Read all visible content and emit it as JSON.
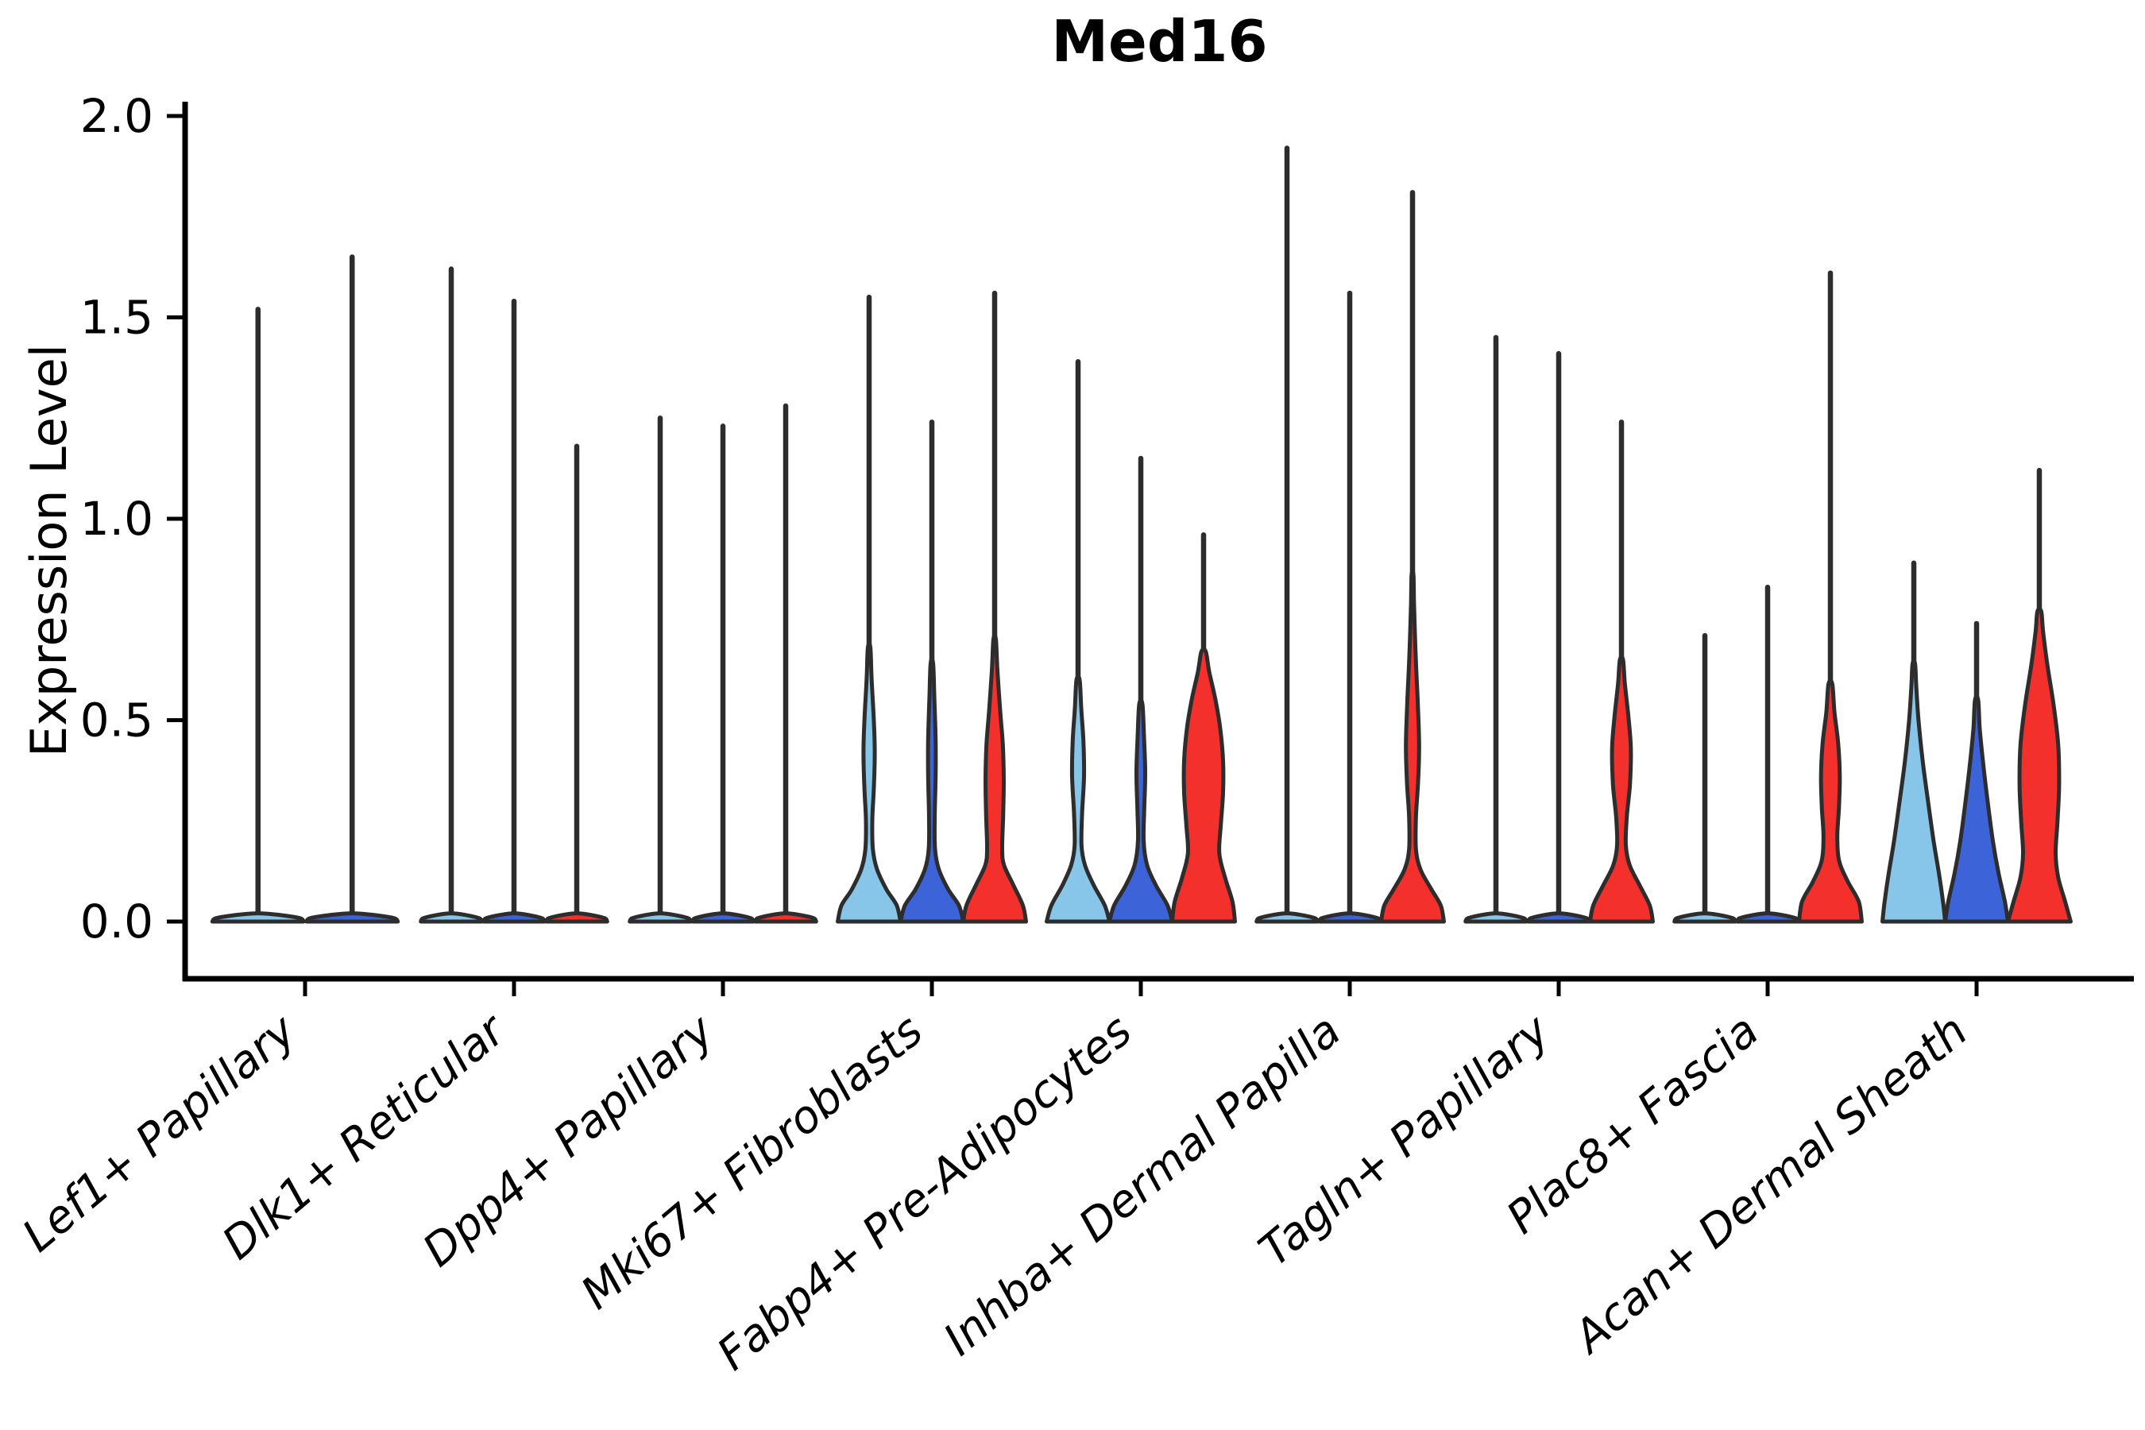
{
  "chart_data": {
    "type": "violin",
    "title": "Med16",
    "ylabel": "Expression Level",
    "xlabel": "",
    "ylim": [
      0.0,
      2.0
    ],
    "yticks": [
      "0.0",
      "0.5",
      "1.0",
      "1.5",
      "2.0"
    ],
    "ytick_values": [
      0.0,
      0.5,
      1.0,
      1.5,
      2.0
    ],
    "grid": "off",
    "legend": "none",
    "categories": [
      "Lef1+ Papillary",
      "Dlk1+ Reticular",
      "Dpp4+ Papillary",
      "Mki67+ Fibroblasts",
      "Fabp4+ Pre-Adipocytes",
      "Inhba+ Dermal Papilla",
      "Tagln+ Papillary",
      "Plac8+ Fascia",
      "Acan+ Dermal Sheath"
    ],
    "palette": {
      "light_blue": "#87c6e8",
      "dark_blue": "#3c64d8",
      "red": "#f3302b",
      "outline": "#2d2d2d",
      "axis": "#000000"
    },
    "flat_profile": [
      [
        0,
        0.97
      ],
      [
        0.008,
        0.9
      ],
      [
        0.015,
        0.55
      ],
      [
        0.02,
        0.12
      ]
    ],
    "groups": [
      {
        "category": "Lef1+ Papillary",
        "violins": [
          {
            "color": "light_blue",
            "max": 1.52,
            "profile": "flat"
          },
          {
            "color": "dark_blue",
            "max": 1.65,
            "profile": "flat"
          }
        ]
      },
      {
        "category": "Dlk1+ Reticular",
        "violins": [
          {
            "color": "light_blue",
            "max": 1.62,
            "profile": "flat"
          },
          {
            "color": "dark_blue",
            "max": 1.54,
            "profile": "flat"
          },
          {
            "color": "red",
            "max": 1.18,
            "profile": "flat"
          }
        ]
      },
      {
        "category": "Dpp4+ Papillary",
        "violins": [
          {
            "color": "light_blue",
            "max": 1.25,
            "profile": "flat"
          },
          {
            "color": "dark_blue",
            "max": 1.23,
            "profile": "flat"
          },
          {
            "color": "red",
            "max": 1.28,
            "profile": "flat"
          }
        ]
      },
      {
        "category": "Mki67+ Fibroblasts",
        "violins": [
          {
            "color": "light_blue",
            "max": 1.55,
            "profile": [
              [
                0,
                1.0
              ],
              [
                0.04,
                0.88
              ],
              [
                0.08,
                0.55
              ],
              [
                0.13,
                0.25
              ],
              [
                0.18,
                0.12
              ],
              [
                0.25,
                0.1
              ],
              [
                0.33,
                0.15
              ],
              [
                0.42,
                0.18
              ],
              [
                0.5,
                0.15
              ],
              [
                0.6,
                0.08
              ],
              [
                0.68,
                0.04
              ]
            ]
          },
          {
            "color": "dark_blue",
            "max": 1.24,
            "profile": [
              [
                0,
                1.0
              ],
              [
                0.04,
                0.86
              ],
              [
                0.08,
                0.52
              ],
              [
                0.13,
                0.22
              ],
              [
                0.18,
                0.1
              ],
              [
                0.26,
                0.09
              ],
              [
                0.36,
                0.12
              ],
              [
                0.45,
                0.12
              ],
              [
                0.55,
                0.08
              ],
              [
                0.64,
                0.04
              ]
            ]
          },
          {
            "color": "red",
            "max": 1.56,
            "profile": [
              [
                0,
                1.0
              ],
              [
                0.04,
                0.9
              ],
              [
                0.09,
                0.6
              ],
              [
                0.14,
                0.3
              ],
              [
                0.18,
                0.24
              ],
              [
                0.26,
                0.27
              ],
              [
                0.35,
                0.29
              ],
              [
                0.44,
                0.26
              ],
              [
                0.52,
                0.18
              ],
              [
                0.62,
                0.09
              ],
              [
                0.7,
                0.04
              ]
            ]
          }
        ]
      },
      {
        "category": "Fabp4+ Pre-Adipocytes",
        "violins": [
          {
            "color": "light_blue",
            "max": 1.39,
            "profile": [
              [
                0,
                1.0
              ],
              [
                0.04,
                0.85
              ],
              [
                0.09,
                0.5
              ],
              [
                0.14,
                0.22
              ],
              [
                0.19,
                0.11
              ],
              [
                0.27,
                0.13
              ],
              [
                0.36,
                0.19
              ],
              [
                0.45,
                0.17
              ],
              [
                0.53,
                0.1
              ],
              [
                0.6,
                0.05
              ]
            ]
          },
          {
            "color": "dark_blue",
            "max": 1.15,
            "profile": [
              [
                0,
                1.0
              ],
              [
                0.04,
                0.85
              ],
              [
                0.09,
                0.48
              ],
              [
                0.14,
                0.2
              ],
              [
                0.2,
                0.09
              ],
              [
                0.28,
                0.11
              ],
              [
                0.37,
                0.14
              ],
              [
                0.46,
                0.1
              ],
              [
                0.54,
                0.05
              ]
            ]
          },
          {
            "color": "red",
            "max": 0.96,
            "profile": [
              [
                0,
                1.0
              ],
              [
                0.05,
                0.92
              ],
              [
                0.11,
                0.68
              ],
              [
                0.17,
                0.5
              ],
              [
                0.24,
                0.55
              ],
              [
                0.32,
                0.62
              ],
              [
                0.4,
                0.62
              ],
              [
                0.48,
                0.53
              ],
              [
                0.55,
                0.38
              ],
              [
                0.62,
                0.18
              ],
              [
                0.67,
                0.07
              ]
            ]
          }
        ]
      },
      {
        "category": "Inhba+ Dermal Papilla",
        "violins": [
          {
            "color": "light_blue",
            "max": 1.92,
            "profile": "flat"
          },
          {
            "color": "dark_blue",
            "max": 1.56,
            "profile": "flat"
          },
          {
            "color": "red",
            "max": 1.81,
            "profile": [
              [
                0,
                1.0
              ],
              [
                0.04,
                0.9
              ],
              [
                0.08,
                0.6
              ],
              [
                0.13,
                0.25
              ],
              [
                0.18,
                0.11
              ],
              [
                0.26,
                0.11
              ],
              [
                0.35,
                0.18
              ],
              [
                0.44,
                0.21
              ],
              [
                0.54,
                0.17
              ],
              [
                0.66,
                0.1
              ],
              [
                0.78,
                0.05
              ],
              [
                0.86,
                0.03
              ]
            ]
          }
        ]
      },
      {
        "category": "Tagln+ Papillary",
        "violins": [
          {
            "color": "light_blue",
            "max": 1.45,
            "profile": "flat"
          },
          {
            "color": "dark_blue",
            "max": 1.41,
            "profile": "flat"
          },
          {
            "color": "red",
            "max": 1.24,
            "profile": [
              [
                0,
                1.0
              ],
              [
                0.04,
                0.9
              ],
              [
                0.09,
                0.58
              ],
              [
                0.14,
                0.26
              ],
              [
                0.19,
                0.14
              ],
              [
                0.26,
                0.17
              ],
              [
                0.34,
                0.27
              ],
              [
                0.43,
                0.3
              ],
              [
                0.51,
                0.22
              ],
              [
                0.59,
                0.11
              ],
              [
                0.65,
                0.05
              ]
            ]
          }
        ]
      },
      {
        "category": "Plac8+ Fascia",
        "violins": [
          {
            "color": "light_blue",
            "max": 0.71,
            "profile": "flat"
          },
          {
            "color": "dark_blue",
            "max": 0.83,
            "profile": "flat"
          },
          {
            "color": "red",
            "max": 1.61,
            "profile": [
              [
                0,
                1.0
              ],
              [
                0.05,
                0.9
              ],
              [
                0.1,
                0.55
              ],
              [
                0.15,
                0.28
              ],
              [
                0.21,
                0.22
              ],
              [
                0.28,
                0.27
              ],
              [
                0.36,
                0.3
              ],
              [
                0.44,
                0.25
              ],
              [
                0.52,
                0.13
              ],
              [
                0.59,
                0.06
              ]
            ]
          }
        ]
      },
      {
        "category": "Acan+ Dermal Sheath",
        "violins": [
          {
            "color": "light_blue",
            "max": 0.89,
            "profile": [
              [
                0,
                1.0
              ],
              [
                0.05,
                0.93
              ],
              [
                0.12,
                0.8
              ],
              [
                0.2,
                0.63
              ],
              [
                0.3,
                0.45
              ],
              [
                0.4,
                0.28
              ],
              [
                0.5,
                0.15
              ],
              [
                0.58,
                0.08
              ],
              [
                0.64,
                0.04
              ]
            ]
          },
          {
            "color": "dark_blue",
            "max": 0.74,
            "profile": [
              [
                0,
                1.0
              ],
              [
                0.05,
                0.9
              ],
              [
                0.12,
                0.7
              ],
              [
                0.2,
                0.52
              ],
              [
                0.3,
                0.35
              ],
              [
                0.4,
                0.2
              ],
              [
                0.48,
                0.1
              ],
              [
                0.55,
                0.05
              ]
            ]
          },
          {
            "color": "red",
            "max": 1.12,
            "profile": [
              [
                0,
                1.0
              ],
              [
                0.05,
                0.82
              ],
              [
                0.11,
                0.6
              ],
              [
                0.17,
                0.52
              ],
              [
                0.25,
                0.58
              ],
              [
                0.34,
                0.63
              ],
              [
                0.44,
                0.6
              ],
              [
                0.54,
                0.45
              ],
              [
                0.64,
                0.25
              ],
              [
                0.72,
                0.12
              ],
              [
                0.77,
                0.06
              ]
            ]
          }
        ]
      }
    ]
  }
}
